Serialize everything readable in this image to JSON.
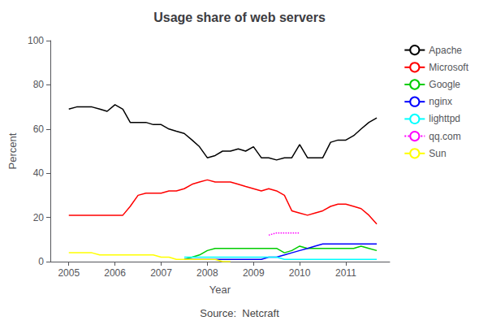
{
  "chart_data": {
    "type": "line",
    "title": "Usage share of web servers",
    "xlabel": "Year",
    "ylabel": "Percent",
    "annotations": [
      "Source:  Netcraft"
    ],
    "xlim": [
      2004.6,
      2011.95
    ],
    "ylim": [
      0,
      100
    ],
    "xticks": [
      2005,
      2006,
      2007,
      2008,
      2009,
      2010,
      2011
    ],
    "yticks": [
      0,
      20,
      40,
      60,
      80,
      100
    ],
    "grid": false,
    "legend": "upper right",
    "series": [
      {
        "name": "Apache",
        "color": "#000000",
        "line_style": "solid",
        "x": [
          2005.0,
          2005.17,
          2005.33,
          2005.5,
          2005.67,
          2005.83,
          2006.0,
          2006.17,
          2006.33,
          2006.5,
          2006.67,
          2006.83,
          2007.0,
          2007.17,
          2007.33,
          2007.5,
          2007.67,
          2007.83,
          2008.0,
          2008.17,
          2008.33,
          2008.5,
          2008.67,
          2008.83,
          2009.0,
          2009.17,
          2009.33,
          2009.5,
          2009.67,
          2009.83,
          2010.0,
          2010.17,
          2010.33,
          2010.5,
          2010.67,
          2010.83,
          2011.0,
          2011.17,
          2011.33,
          2011.5,
          2011.67
        ],
        "values": [
          69,
          70,
          70,
          70,
          69,
          68,
          71,
          69,
          63,
          63,
          63,
          62,
          62,
          60,
          59,
          58,
          55,
          52,
          47,
          48,
          50,
          50,
          51,
          50,
          52,
          47,
          47,
          46,
          47,
          47,
          53,
          47,
          47,
          47,
          54,
          55,
          55,
          57,
          60,
          63,
          65
        ]
      },
      {
        "name": "Microsoft",
        "color": "#ff0000",
        "line_style": "solid",
        "x": [
          2005.0,
          2005.17,
          2005.33,
          2005.5,
          2005.67,
          2005.83,
          2006.0,
          2006.17,
          2006.33,
          2006.5,
          2006.67,
          2006.83,
          2007.0,
          2007.17,
          2007.33,
          2007.5,
          2007.67,
          2007.83,
          2008.0,
          2008.17,
          2008.33,
          2008.5,
          2008.67,
          2008.83,
          2009.0,
          2009.17,
          2009.33,
          2009.5,
          2009.67,
          2009.83,
          2010.0,
          2010.17,
          2010.33,
          2010.5,
          2010.67,
          2010.83,
          2011.0,
          2011.17,
          2011.33,
          2011.5,
          2011.67
        ],
        "values": [
          21,
          21,
          21,
          21,
          21,
          21,
          21,
          21,
          25,
          30,
          31,
          31,
          31,
          32,
          32,
          33,
          35,
          36,
          37,
          36,
          36,
          36,
          35,
          34,
          33,
          32,
          33,
          32,
          30,
          23,
          22,
          21,
          22,
          23,
          25,
          26,
          26,
          25,
          24,
          21,
          17
        ]
      },
      {
        "name": "Google",
        "color": "#00cc00",
        "line_style": "solid",
        "x": [
          2007.5,
          2007.67,
          2007.83,
          2008.0,
          2008.17,
          2008.33,
          2008.5,
          2008.67,
          2008.83,
          2009.0,
          2009.17,
          2009.33,
          2009.5,
          2009.67,
          2009.83,
          2010.0,
          2010.17,
          2010.33,
          2010.5,
          2010.67,
          2010.83,
          2011.0,
          2011.17,
          2011.33,
          2011.5,
          2011.67
        ],
        "values": [
          1,
          2,
          3,
          5,
          6,
          6,
          6,
          6,
          6,
          6,
          6,
          6,
          6,
          4,
          5,
          7,
          6,
          6,
          6,
          6,
          6,
          6,
          6,
          7,
          6,
          5
        ]
      },
      {
        "name": "nginx",
        "color": "#0000ff",
        "line_style": "solid",
        "x": [
          2007.5,
          2007.67,
          2007.83,
          2008.0,
          2008.17,
          2008.33,
          2008.5,
          2008.67,
          2008.83,
          2009.0,
          2009.17,
          2009.33,
          2009.5,
          2009.67,
          2009.83,
          2010.0,
          2010.17,
          2010.33,
          2010.5,
          2010.67,
          2010.83,
          2011.0,
          2011.17,
          2011.33,
          2011.5,
          2011.67
        ],
        "values": [
          1,
          1,
          1,
          1,
          1,
          1,
          1,
          1,
          1,
          1,
          1,
          2,
          2,
          3,
          4,
          5,
          6,
          7,
          8,
          8,
          8,
          8,
          8,
          8,
          8,
          8
        ]
      },
      {
        "name": "lighttpd",
        "color": "#00ffff",
        "line_style": "solid",
        "x": [
          2007.5,
          2007.67,
          2007.83,
          2008.0,
          2008.17,
          2008.33,
          2008.5,
          2008.67,
          2008.83,
          2009.0,
          2009.17,
          2009.33,
          2009.5,
          2009.67,
          2009.83,
          2010.0,
          2010.17,
          2010.33,
          2010.5,
          2010.67,
          2010.83,
          2011.0,
          2011.17,
          2011.33,
          2011.5,
          2011.67
        ],
        "values": [
          2,
          2,
          2,
          2,
          2,
          2,
          2,
          2,
          2,
          2,
          2,
          2,
          2,
          1,
          1,
          1,
          1,
          1,
          1,
          1,
          1,
          1,
          1,
          1,
          1,
          1
        ]
      },
      {
        "name": "qq.com",
        "color": "#ff00ff",
        "line_style": "dotted",
        "x": [
          2009.33,
          2009.5,
          2009.67,
          2009.83,
          2010.0
        ],
        "values": [
          12,
          13,
          13,
          13,
          13
        ]
      },
      {
        "name": "Sun",
        "color": "#ffff00",
        "line_style": "solid",
        "x": [
          2005.0,
          2005.17,
          2005.33,
          2005.5,
          2005.67,
          2005.83,
          2006.0,
          2006.17,
          2006.33,
          2006.5,
          2006.67,
          2006.83,
          2007.0,
          2007.17,
          2007.33,
          2007.5,
          2007.67,
          2007.83,
          2008.0,
          2008.17,
          2008.33,
          2008.5
        ],
        "values": [
          4,
          4,
          4,
          4,
          3,
          3,
          3,
          3,
          3,
          3,
          3,
          3,
          2,
          2,
          1,
          1,
          1,
          1,
          1,
          1,
          0,
          0
        ]
      }
    ]
  }
}
